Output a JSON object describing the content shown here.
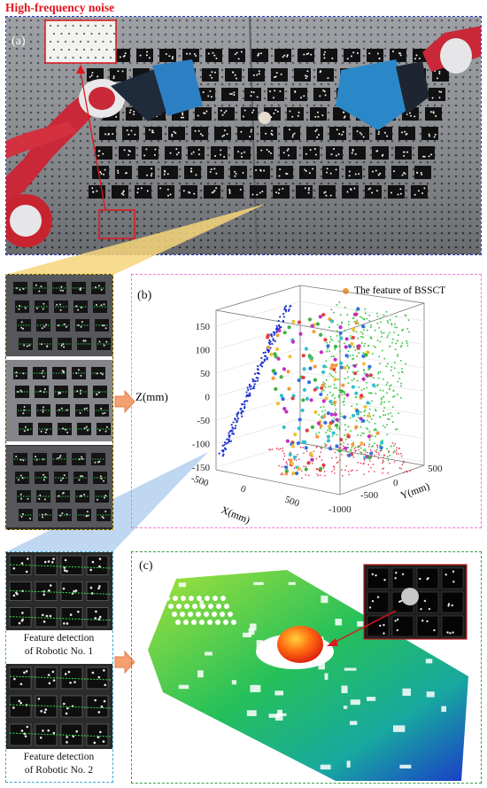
{
  "panel_a": {
    "title": "High-frequency noise",
    "label": "(a)"
  },
  "panel_b": {
    "label": "(b)",
    "legend": "The feature of BSSCT",
    "z_axis_label": "Z(mm)",
    "x_axis_label": "X(mm)",
    "y_axis_label": "Y(mm)",
    "z_ticks": [
      "150",
      "100",
      "50",
      "0",
      "-50",
      "-100",
      "-150"
    ],
    "x_ticks": [
      "-500",
      "0",
      "500"
    ],
    "y_ticks": [
      "500",
      "0",
      "-500",
      "-1000"
    ]
  },
  "panel_c": {
    "label": "(c)"
  },
  "captions": {
    "robot1": [
      "Feature detection",
      "of Robotic No. 1"
    ],
    "robot2": [
      "Feature detection",
      "of Robotic No. 2"
    ]
  },
  "colors": {
    "panel_a_border": "#2a3cc8",
    "panel_b_border": "#f07ad8",
    "panel_c_border": "#3aa04a",
    "yellow_strip_border": "#d8b828",
    "cyan_strip_border": "#3aa7d8",
    "noise_marker": "#e0161c",
    "arrow": "#f4a070"
  }
}
